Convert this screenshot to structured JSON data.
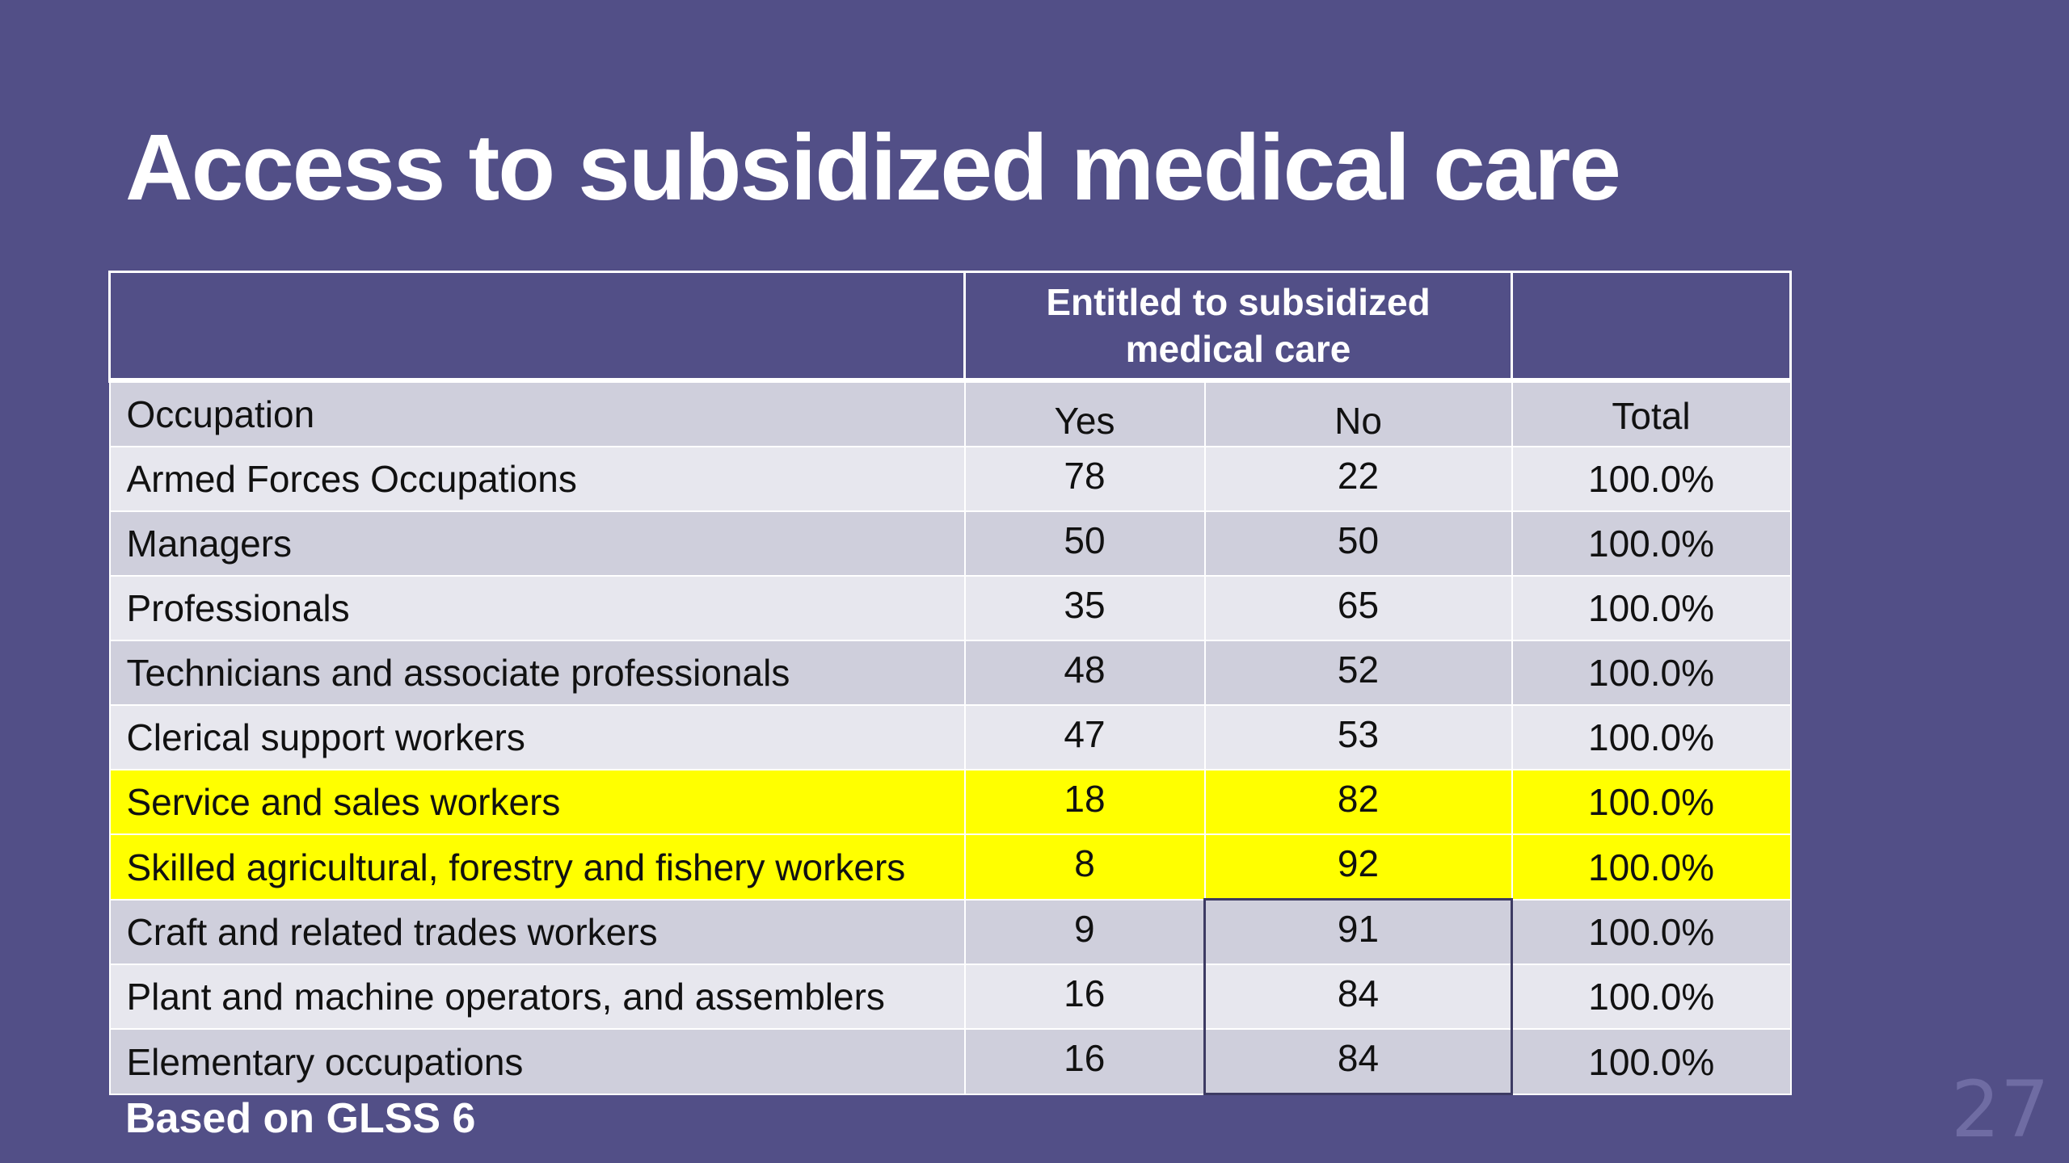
{
  "title": "Access to subsidized medical care",
  "table": {
    "group_header": "Entitled to subsidized medical care",
    "columns": {
      "occupation": "Occupation",
      "yes": "Yes",
      "no": "No",
      "total": "Total"
    },
    "rows": [
      {
        "occupation": "Armed Forces Occupations",
        "yes": "78",
        "no": "22",
        "total": "100.0%",
        "highlighted": false
      },
      {
        "occupation": "Managers",
        "yes": "50",
        "no": "50",
        "total": "100.0%",
        "highlighted": false
      },
      {
        "occupation": "Professionals",
        "yes": "35",
        "no": "65",
        "total": "100.0%",
        "highlighted": false
      },
      {
        "occupation": "Technicians and associate professionals",
        "yes": "48",
        "no": "52",
        "total": "100.0%",
        "highlighted": false
      },
      {
        "occupation": "Clerical support workers",
        "yes": "47",
        "no": "53",
        "total": "100.0%",
        "highlighted": false
      },
      {
        "occupation": "Service and sales workers",
        "yes": "18",
        "no": "82",
        "total": "100.0%",
        "highlighted": true
      },
      {
        "occupation": "Skilled agricultural, forestry and fishery workers",
        "yes": "8",
        "no": "92",
        "total": "100.0%",
        "highlighted": true
      },
      {
        "occupation": "Craft and related trades workers",
        "yes": "9",
        "no": "91",
        "total": "100.0%",
        "highlighted": false
      },
      {
        "occupation": "Plant and machine operators, and assemblers",
        "yes": "16",
        "no": "84",
        "total": "100.0%",
        "highlighted": false
      },
      {
        "occupation": "Elementary occupations",
        "yes": "16",
        "no": "84",
        "total": "100.0%",
        "highlighted": false
      }
    ]
  },
  "footnote": "Based on GLSS 6",
  "slide_number": "27",
  "colors": {
    "background": "#524f87",
    "highlight": "#ffff00",
    "row_dark": "#cfcfdc",
    "row_light": "#e7e7ee"
  }
}
